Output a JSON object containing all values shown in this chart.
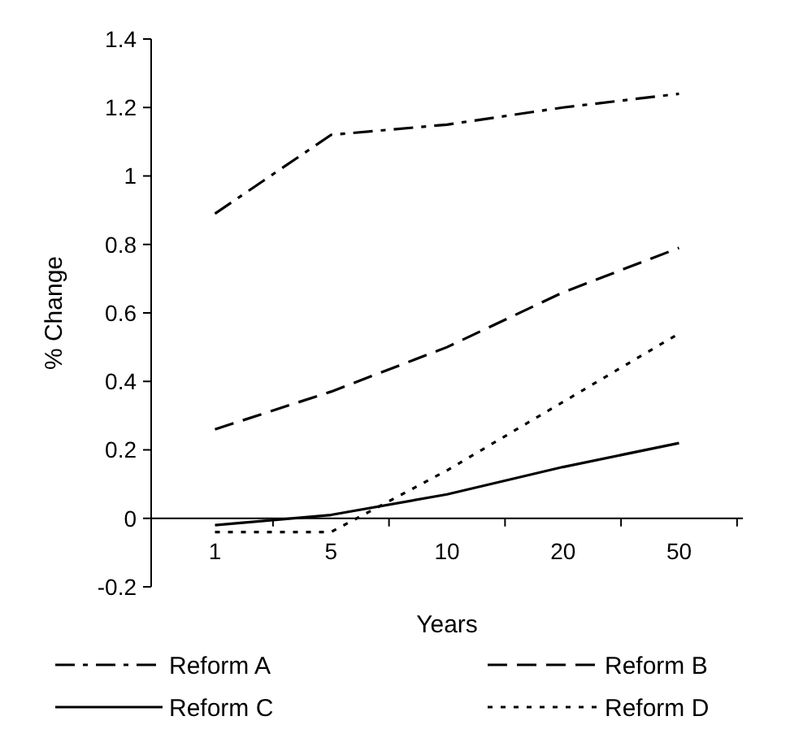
{
  "chart_data": {
    "type": "line",
    "xlabel": "Years",
    "ylabel": "% Change",
    "categories": [
      "1",
      "5",
      "10",
      "20",
      "50"
    ],
    "ylim": [
      -0.2,
      1.4
    ],
    "yticks": [
      -0.2,
      0,
      0.2,
      0.4,
      0.6,
      0.8,
      1,
      1.2,
      1.4
    ],
    "legend": "bottom",
    "grid": false,
    "marker": "none",
    "series": [
      {
        "name": "Reform A",
        "color": "#000000",
        "line_style": "dashdot",
        "values": [
          0.89,
          1.12,
          1.15,
          1.2,
          1.24
        ]
      },
      {
        "name": "Reform B",
        "color": "#000000",
        "line_style": "dashed",
        "values": [
          0.26,
          0.37,
          0.5,
          0.66,
          0.79
        ]
      },
      {
        "name": "Reform C",
        "color": "#000000",
        "line_style": "solid",
        "values": [
          -0.02,
          0.01,
          0.07,
          0.15,
          0.22
        ]
      },
      {
        "name": "Reform D",
        "color": "#000000",
        "line_style": "dotted",
        "values": [
          -0.04,
          -0.04,
          0.14,
          0.34,
          0.54
        ]
      }
    ]
  }
}
